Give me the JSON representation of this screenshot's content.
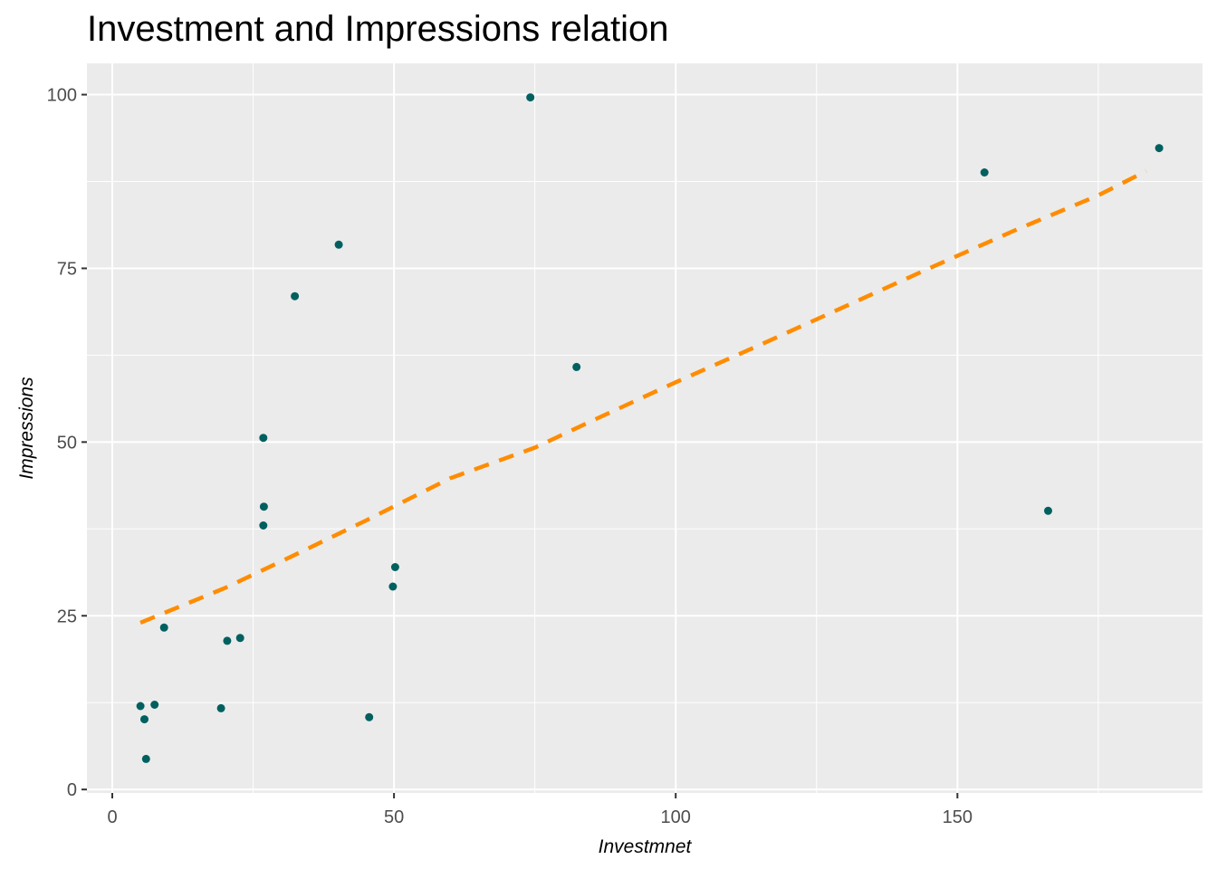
{
  "chart_data": {
    "type": "scatter",
    "title": "Investment and Impressions relation",
    "xlabel": "Investmnet",
    "ylabel": "Impressions",
    "xlim": [
      -4.5,
      193.5
    ],
    "ylim": [
      -0.5,
      104.5
    ],
    "x_ticks": [
      0,
      50,
      100,
      150
    ],
    "x_tick_labels": [
      "0",
      "50",
      "100",
      "150"
    ],
    "x_minor_ticks": [
      25,
      75,
      125,
      175
    ],
    "y_ticks": [
      0,
      25,
      50,
      75,
      100
    ],
    "y_tick_labels": [
      "0",
      "25",
      "50",
      "75",
      "100"
    ],
    "y_minor_ticks": [
      12.5,
      37.5,
      62.5,
      87.5
    ],
    "grid": true,
    "legend": "none",
    "colors": {
      "panel": "#ebebeb",
      "grid": "#ffffff",
      "point": "#006060",
      "trend": "#ff8c00"
    },
    "series": [
      {
        "type": "scatter",
        "points": [
          {
            "x": 5.0,
            "y": 12.0
          },
          {
            "x": 5.7,
            "y": 10.1
          },
          {
            "x": 6.0,
            "y": 4.4
          },
          {
            "x": 7.5,
            "y": 12.2
          },
          {
            "x": 9.2,
            "y": 23.3
          },
          {
            "x": 19.3,
            "y": 11.7
          },
          {
            "x": 20.4,
            "y": 21.4
          },
          {
            "x": 22.7,
            "y": 21.8
          },
          {
            "x": 26.8,
            "y": 50.6
          },
          {
            "x": 26.9,
            "y": 40.7
          },
          {
            "x": 26.8,
            "y": 38.0
          },
          {
            "x": 32.4,
            "y": 71.0
          },
          {
            "x": 40.2,
            "y": 78.4
          },
          {
            "x": 45.6,
            "y": 10.4
          },
          {
            "x": 49.8,
            "y": 29.2
          },
          {
            "x": 50.2,
            "y": 32.0
          },
          {
            "x": 74.2,
            "y": 99.6
          },
          {
            "x": 82.4,
            "y": 60.8
          },
          {
            "x": 154.8,
            "y": 88.8
          },
          {
            "x": 166.1,
            "y": 40.1
          },
          {
            "x": 185.8,
            "y": 92.3
          }
        ]
      },
      {
        "type": "line",
        "style": "dashed",
        "points": [
          {
            "x": 5.0,
            "y": 24.0
          },
          {
            "x": 20.0,
            "y": 29.0
          },
          {
            "x": 32.0,
            "y": 33.6
          },
          {
            "x": 45.0,
            "y": 38.7
          },
          {
            "x": 60.0,
            "y": 44.8
          },
          {
            "x": 75.0,
            "y": 49.2
          },
          {
            "x": 85.0,
            "y": 53.0
          },
          {
            "x": 100.0,
            "y": 58.6
          },
          {
            "x": 115.0,
            "y": 64.0
          },
          {
            "x": 130.0,
            "y": 69.5
          },
          {
            "x": 145.0,
            "y": 75.0
          },
          {
            "x": 160.0,
            "y": 80.4
          },
          {
            "x": 175.0,
            "y": 85.5
          },
          {
            "x": 183.5,
            "y": 89.0
          }
        ]
      }
    ]
  }
}
